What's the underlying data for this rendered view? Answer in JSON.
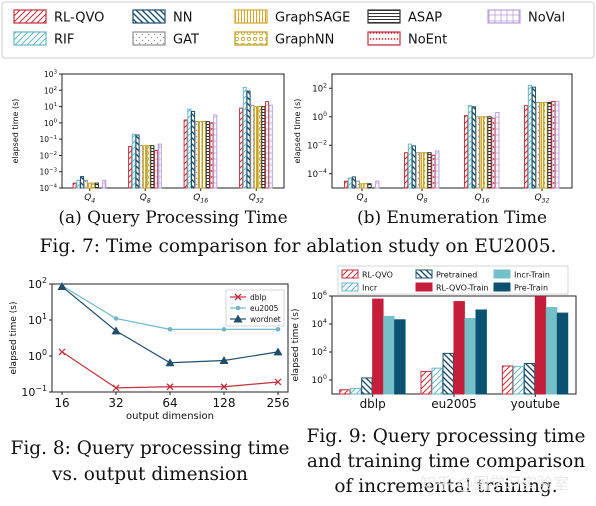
{
  "fig7": {
    "caption": "Fig. 7: Time comparison for ablation study on EU2005.",
    "legend": [
      {
        "name": "RL-QVO",
        "color": "#c0313d",
        "pattern": "diag"
      },
      {
        "name": "RIF",
        "color": "#6ab8c2",
        "pattern": "diag"
      },
      {
        "name": "NN",
        "color": "#1f4e6b",
        "pattern": "diagrev"
      },
      {
        "name": "GAT",
        "color": "#909090",
        "pattern": "dots"
      },
      {
        "name": "GraphSAGE",
        "color": "#d4a72c",
        "pattern": "vert"
      },
      {
        "name": "GraphNN",
        "color": "#b8a020",
        "pattern": "circles"
      },
      {
        "name": "ASAP",
        "color": "#333333",
        "pattern": "horiz"
      },
      {
        "name": "NoEnt",
        "color": "#c0313d",
        "pattern": "stars"
      },
      {
        "name": "NoVal",
        "color": "#b9a0d8",
        "pattern": "grid"
      }
    ]
  },
  "fig8": {
    "caption": "Fig. 8: Query processing time vs. output dimension"
  },
  "fig9": {
    "caption": "Fig. 9: Query processing time and training time comparison of incremental training.",
    "legend": [
      {
        "name": "RL-QVO",
        "color": "#c0313d",
        "style": "hatch"
      },
      {
        "name": "Incr",
        "color": "#6ab8c2",
        "style": "hatch"
      },
      {
        "name": "Pretrained",
        "color": "#1f4e6b",
        "style": "hatch"
      },
      {
        "name": "RL-QVO-Train",
        "color": "#c41e3a",
        "style": "solid"
      },
      {
        "name": "Incr-Train",
        "color": "#74c0c8",
        "style": "solid"
      },
      {
        "name": "Pre-Train",
        "color": "#0b5272",
        "style": "solid"
      }
    ]
  },
  "watermark": "知乎 @图学习实验室",
  "chart_data": [
    {
      "type": "bar",
      "subtitle": "(a) Query Processing Time",
      "ylabel": "elapsed time (s)",
      "yscale": "log",
      "ylim": [
        0.0001,
        1000
      ],
      "yticks": [
        "10^{-4}",
        "10^{-3}",
        "10^{-2}",
        "10^{-1}",
        "10^0",
        "10^1",
        "10^2",
        "10^3"
      ],
      "categories": [
        "Q_4",
        "Q_8",
        "Q_16",
        "Q_32"
      ],
      "series": [
        {
          "name": "RL-QVO",
          "values": [
            0.0002,
            0.035,
            1.5,
            8
          ]
        },
        {
          "name": "RIF",
          "values": [
            0.0003,
            0.2,
            7,
            150
          ]
        },
        {
          "name": "NN",
          "values": [
            0.0005,
            0.18,
            5,
            90
          ]
        },
        {
          "name": "GAT",
          "values": [
            0.0003,
            0.04,
            1.2,
            12
          ]
        },
        {
          "name": "GraphSAGE",
          "values": [
            0.0002,
            0.04,
            1.2,
            10
          ]
        },
        {
          "name": "GraphNN",
          "values": [
            0.0002,
            0.04,
            1.2,
            10
          ]
        },
        {
          "name": "ASAP",
          "values": [
            0.0002,
            0.04,
            1.2,
            10
          ]
        },
        {
          "name": "NoEnt",
          "values": [
            0.0001,
            0.02,
            1.0,
            20
          ]
        },
        {
          "name": "NoVal",
          "values": [
            0.0003,
            0.05,
            3,
            12
          ]
        }
      ]
    },
    {
      "type": "bar",
      "subtitle": "(b) Enumeration Time",
      "ylabel": "elapsed time (s)",
      "yscale": "log",
      "ylim": [
        1e-05,
        1000
      ],
      "yticks": [
        "10^{-4}",
        "10^{-2}",
        "10^0",
        "10^2"
      ],
      "categories": [
        "Q_4",
        "Q_8",
        "Q_16",
        "Q_32"
      ],
      "series": [
        {
          "name": "RL-QVO",
          "values": [
            3e-05,
            0.003,
            1.2,
            6
          ]
        },
        {
          "name": "RIF",
          "values": [
            5e-05,
            0.012,
            6,
            160
          ]
        },
        {
          "name": "NN",
          "values": [
            6e-05,
            0.009,
            5,
            120
          ]
        },
        {
          "name": "GAT",
          "values": [
            3e-05,
            0.003,
            1.0,
            10
          ]
        },
        {
          "name": "GraphSAGE",
          "values": [
            2e-05,
            0.003,
            1.0,
            10
          ]
        },
        {
          "name": "GraphNN",
          "values": [
            2e-05,
            0.003,
            1.0,
            10
          ]
        },
        {
          "name": "ASAP",
          "values": [
            2e-05,
            0.003,
            1.0,
            10
          ]
        },
        {
          "name": "NoEnt",
          "values": [
            1e-05,
            0.002,
            0.8,
            12
          ]
        },
        {
          "name": "NoVal",
          "values": [
            3e-05,
            0.004,
            2,
            12
          ]
        }
      ]
    },
    {
      "type": "line",
      "xlabel": "output dimension",
      "ylabel": "elapsed time (s)",
      "yscale": "log",
      "ylim": [
        0.1,
        100
      ],
      "yticks": [
        "10^{-1}",
        "10^0",
        "10^1",
        "10^2"
      ],
      "x": [
        16,
        32,
        64,
        128,
        256
      ],
      "series": [
        {
          "name": "dblp",
          "color": "#c0313d",
          "marker": "x",
          "values": [
            1.3,
            0.13,
            0.14,
            0.14,
            0.19
          ]
        },
        {
          "name": "eu2005",
          "color": "#74b6c9",
          "marker": "o",
          "values": [
            90,
            11,
            5.5,
            5.5,
            5.5
          ]
        },
        {
          "name": "wordnet",
          "color": "#1f4e6b",
          "marker": "^",
          "values": [
            85,
            5,
            0.65,
            0.75,
            1.3
          ]
        }
      ]
    },
    {
      "type": "bar",
      "ylabel": "elapsed time (s)",
      "yscale": "log",
      "ylim": [
        0.1,
        1000000
      ],
      "yticks": [
        "10^0",
        "10^2",
        "10^4",
        "10^6"
      ],
      "categories": [
        "dblp",
        "eu2005",
        "youtube"
      ],
      "series": [
        {
          "name": "RL-QVO",
          "values": [
            0.2,
            4,
            10
          ]
        },
        {
          "name": "Incr",
          "values": [
            0.25,
            7,
            9
          ]
        },
        {
          "name": "Pretrained",
          "values": [
            1.4,
            80,
            15
          ]
        },
        {
          "name": "RL-QVO-Train",
          "values": [
            600000,
            400000,
            900000
          ]
        },
        {
          "name": "Incr-Train",
          "values": [
            35000,
            25000,
            150000
          ]
        },
        {
          "name": "Pre-Train",
          "values": [
            20000,
            100000,
            60000
          ]
        }
      ]
    }
  ]
}
